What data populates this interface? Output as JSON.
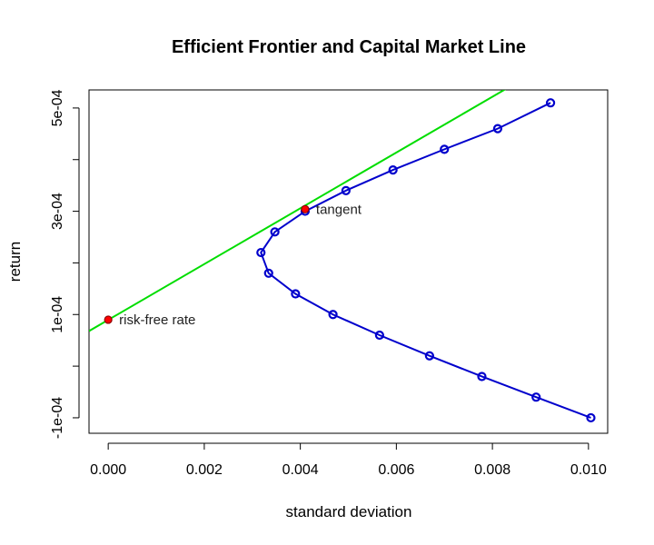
{
  "chart_data": {
    "type": "line",
    "title": "Efficient Frontier and Capital Market Line",
    "xlabel": "standard deviation",
    "ylabel": "return",
    "xlim": [
      -0.0004,
      0.0104
    ],
    "ylim": [
      -0.00013,
      0.000535
    ],
    "x_ticks": [
      0.0,
      0.002,
      0.004,
      0.006,
      0.008,
      0.01
    ],
    "x_tick_labels": [
      "0.000",
      "0.002",
      "0.004",
      "0.006",
      "0.008",
      "0.010"
    ],
    "y_ticks": [
      -0.0001,
      0.0,
      0.0001,
      0.0002,
      0.0003,
      0.0004,
      0.0005
    ],
    "y_tick_labels": [
      "-1e-04",
      "",
      "1e-04",
      "",
      "3e-04",
      "",
      "5e-04"
    ],
    "grid": false,
    "series": [
      {
        "color": "#0000cc",
        "x": [
          0.01005,
          0.00891,
          0.00778,
          0.00669,
          0.00565,
          0.00468,
          0.0039,
          0.00334,
          0.00318,
          0.00347,
          0.0041,
          0.00495,
          0.00593,
          0.007,
          0.00811,
          0.00921
        ],
        "y": [
          -0.0001,
          -6e-05,
          -2e-05,
          2e-05,
          6e-05,
          0.0001,
          0.00014,
          0.00018,
          0.00022,
          0.00026,
          0.0003,
          0.00034,
          0.00038,
          0.00042,
          0.00046,
          0.00051
        ]
      },
      {
        "color": "#00dd00",
        "x": [
          -0.0004,
          0.00843
        ],
        "y": [
          6.8e-05,
          0.000545
        ]
      }
    ],
    "points": [
      {
        "label": "risk-free rate",
        "x": 0.0,
        "y": 9e-05,
        "color": "#ff0000"
      },
      {
        "label": "tangent",
        "x": 0.0041,
        "y": 0.000304,
        "color": "#ff0000"
      }
    ]
  }
}
